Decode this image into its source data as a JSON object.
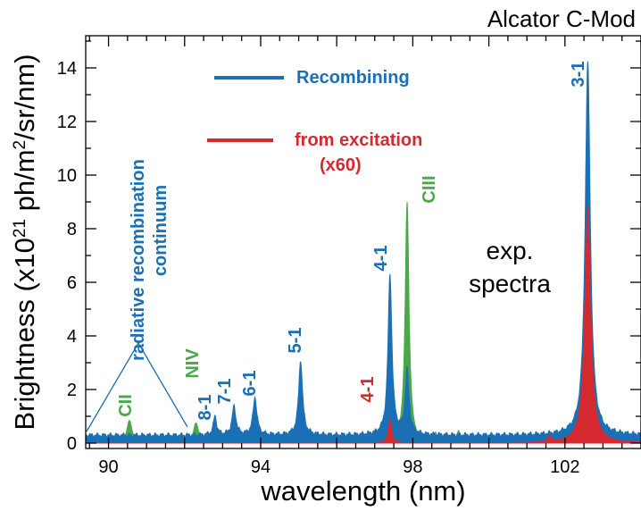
{
  "chart_data": {
    "type": "area",
    "title": "Alcator C-Mod",
    "xlabel": "wavelength (nm)",
    "ylabel_parts": [
      "Brightness (x10",
      "21",
      " ph/m",
      "2",
      "/sr/nm)"
    ],
    "xlim": [
      89.4,
      104.0
    ],
    "ylim": [
      -0.2,
      15.2
    ],
    "x_ticks": [
      90,
      94,
      98,
      102
    ],
    "y_ticks": [
      0,
      2,
      4,
      6,
      8,
      10,
      12,
      14
    ],
    "colors": {
      "blue": "#1a6fb5",
      "red": "#d42a2f",
      "green": "#4aa84a"
    },
    "series": [
      {
        "name": "Recombining",
        "color": "#1a6fb5",
        "baseline": 0.3,
        "peaks": [
          {
            "x": 92.8,
            "y": 0.7,
            "w": 0.05
          },
          {
            "x": 93.3,
            "y": 1.05,
            "w": 0.06
          },
          {
            "x": 93.85,
            "y": 1.4,
            "w": 0.06
          },
          {
            "x": 95.05,
            "y": 2.8,
            "w": 0.06
          },
          {
            "x": 97.4,
            "y": 6.0,
            "w": 0.06
          },
          {
            "x": 97.85,
            "y": 2.4,
            "w": 0.06
          },
          {
            "x": 102.6,
            "y": 13.9,
            "w": 0.08
          }
        ]
      },
      {
        "name": "from excitation",
        "color": "#d42a2f",
        "baseline": 0.0,
        "peaks": [
          {
            "x": 97.4,
            "y": 0.9,
            "w": 0.05
          },
          {
            "x": 101.6,
            "y": 0.25,
            "w": 0.04
          },
          {
            "x": 102.6,
            "y": 8.8,
            "w": 0.09
          }
        ]
      },
      {
        "name": "CIII",
        "color": "#4aa84a",
        "baseline": 0.0,
        "peaks": [
          {
            "x": 90.55,
            "y": 0.85,
            "w": 0.08
          },
          {
            "x": 92.3,
            "y": 0.75,
            "w": 0.08
          },
          {
            "x": 97.85,
            "y": 9.0,
            "w": 0.06
          },
          {
            "x": 98.6,
            "y": 0.35,
            "w": 0.04
          },
          {
            "x": 99.2,
            "y": 0.45,
            "w": 0.05
          }
        ]
      }
    ]
  },
  "legend": {
    "recombining": "Recombining",
    "excitation_line1": "from excitation",
    "excitation_line2": "(x60)"
  },
  "annotations": {
    "exp_line1": "exp.",
    "exp_line2": "spectra",
    "continuum_line1": "radiative recombination",
    "continuum_line2": "continuum",
    "cii": "CII",
    "niv": "NIV",
    "ciii": "CIII",
    "l81": "8-1",
    "l71": "7-1",
    "l61": "6-1",
    "l51": "5-1",
    "l41_blue": "4-1",
    "l41_red": "4-1",
    "l31": "3-1"
  }
}
